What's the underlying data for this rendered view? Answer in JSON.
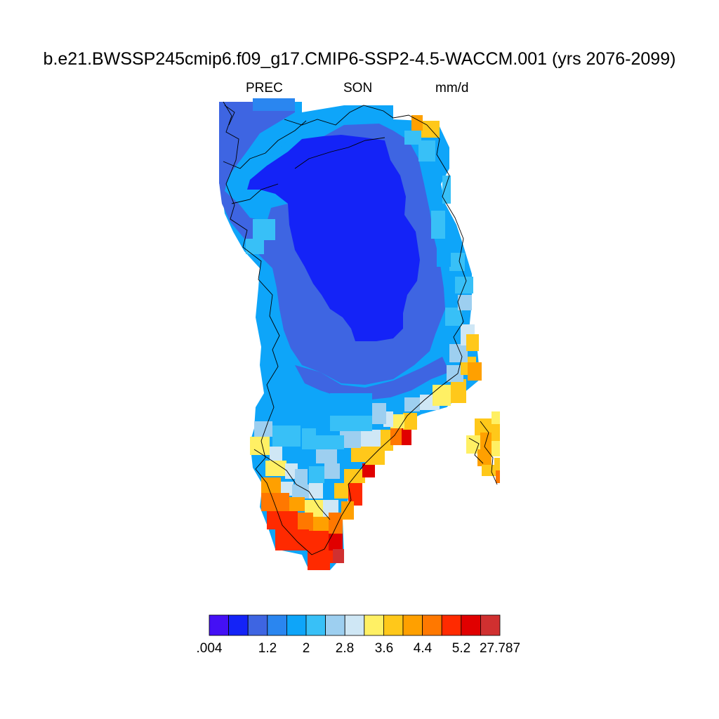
{
  "title": "b.e21.BWSSP245cmip6.f09_g17.CMIP6-SSP2-4.5-WACCM.001 (yrs 2076-2099)",
  "variable": "PREC",
  "season": "SON",
  "units": "mm/d",
  "colorbar": {
    "colors": [
      "#4410f5",
      "#1423f7",
      "#3e65e2",
      "#2a86f0",
      "#0ea5f9",
      "#38c0f7",
      "#9dcff0",
      "#cfe7f5",
      "#fff064",
      "#ffc81a",
      "#ffa000",
      "#ff7800",
      "#ff2a00",
      "#e00000",
      "#d03030"
    ],
    "tick_labels": [
      ".004",
      "1.2",
      "2",
      "2.8",
      "3.6",
      "4.4",
      "5.2",
      "27.787"
    ]
  }
}
